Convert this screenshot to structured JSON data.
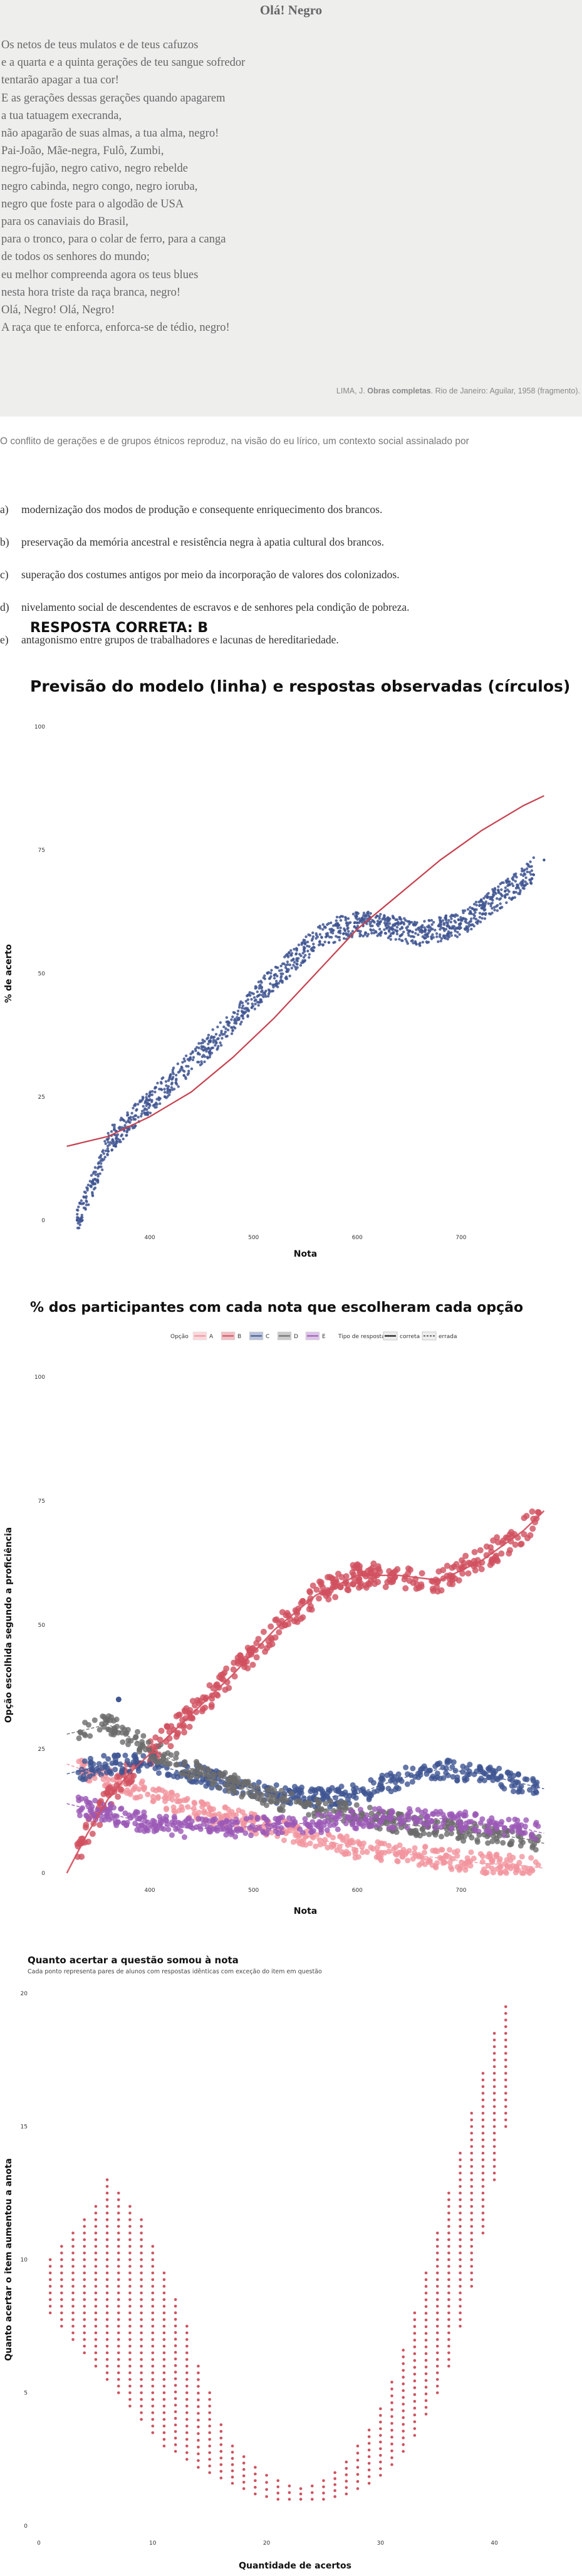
{
  "poem": {
    "title": "Olá! Negro",
    "lines": [
      "Os netos de teus mulatos e de teus cafuzos",
      "e a quarta e a quinta gerações de teu sangue sofredor",
      "tentarão apagar a tua cor!",
      "E as gerações dessas gerações quando apagarem",
      "a tua tatuagem execranda,",
      "não apagarão de suas almas, a tua alma, negro!",
      "Pai-João, Mãe-negra, Fulô, Zumbi,",
      "negro-fujão, negro cativo, negro rebelde",
      "negro cabinda, negro congo, negro ioruba,",
      "negro que foste para o algodão de USA",
      "para os canaviais do Brasil,",
      "para o tronco, para o colar de ferro, para a canga",
      "de todos os senhores do mundo;",
      "eu melhor compreenda agora os teus blues",
      "nesta hora triste da raça branca, negro!",
      "Olá, Negro! Olá, Negro!",
      "A raça que te enforca, enforca-se de tédio, negro!"
    ],
    "source_prefix": "LIMA, J. ",
    "source_bold": "Obras completas",
    "source_suffix": ". Rio de Janeiro: Aguilar, 1958 (fragmento)."
  },
  "question": {
    "text": "O conflito de gerações e de grupos étnicos reproduz, na visão do eu lírico, um contexto social assinalado por",
    "alternatives": [
      {
        "letter": "a)",
        "text": "modernização dos modos de produção e consequente enriquecimento dos brancos."
      },
      {
        "letter": "b)",
        "text": "preservação da memória ancestral e resistência negra à apatia cultural dos brancos."
      },
      {
        "letter": "c)",
        "text": "superação dos costumes antigos por meio da incorporação de valores dos colonizados."
      },
      {
        "letter": "d)",
        "text": "nivelamento social de descendentes de escravos e de senhores pela condição de pobreza."
      },
      {
        "letter": "e)",
        "text": "antagonismo entre grupos de trabalhadores e lacunas de hereditariedade."
      }
    ],
    "answer": "RESPOSTA CORRETA: B"
  },
  "chart_data": [
    {
      "type": "scatter",
      "title": "Previsão do modelo (linha) e respostas observadas (círculos)",
      "xlabel": "Nota",
      "ylabel": "% de acerto",
      "xlim": [
        310,
        790
      ],
      "ylim": [
        0,
        100
      ],
      "xticks": [
        {
          "v": 400,
          "label": "400"
        },
        {
          "v": 500,
          "label": "500"
        },
        {
          "v": 600,
          "label": "600"
        },
        {
          "v": 700,
          "label": "700"
        }
      ],
      "yticks": [
        {
          "v": 0,
          "label": "0"
        },
        {
          "v": 25,
          "label": "25"
        },
        {
          "v": 50,
          "label": "50"
        },
        {
          "v": 75,
          "label": "75"
        },
        {
          "v": 100,
          "label": "100"
        }
      ],
      "model_line": {
        "color": "#c8404f",
        "x": [
          320,
          360,
          400,
          440,
          480,
          520,
          560,
          600,
          640,
          680,
          720,
          760,
          780
        ],
        "y": [
          15,
          17,
          21,
          26,
          33,
          41,
          50,
          59,
          66,
          73,
          79,
          84,
          86
        ]
      },
      "observed": {
        "color": "#3f5592",
        "x": [
          320,
          330,
          340,
          350,
          360,
          380,
          400,
          420,
          440,
          460,
          480,
          500,
          520,
          540,
          560,
          580,
          600,
          620,
          640,
          660,
          680,
          700,
          720,
          740,
          760,
          780
        ],
        "y": [
          0,
          0,
          5,
          10,
          16,
          20,
          24,
          28,
          32,
          36,
          40,
          45,
          49,
          53,
          57,
          59,
          60,
          60,
          59,
          58,
          59,
          60,
          63,
          66,
          69,
          73
        ]
      }
    },
    {
      "type": "scatter",
      "title": "% dos participantes com cada nota que escolheram cada opção",
      "xlabel": "Nota",
      "ylabel": "Opção escolhida segundo a proficiência",
      "xlim": [
        310,
        790
      ],
      "ylim": [
        0,
        100
      ],
      "xticks": [
        {
          "v": 400,
          "label": "400"
        },
        {
          "v": 500,
          "label": "500"
        },
        {
          "v": 600,
          "label": "600"
        },
        {
          "v": 700,
          "label": "700"
        }
      ],
      "yticks": [
        {
          "v": 0,
          "label": "0"
        },
        {
          "v": 25,
          "label": "25"
        },
        {
          "v": 50,
          "label": "50"
        },
        {
          "v": 75,
          "label": "75"
        },
        {
          "v": 100,
          "label": "100"
        }
      ],
      "legend": {
        "option_title": "Opção",
        "type_title": "Tipo de resposta",
        "type_correct": "correta",
        "type_wrong": "errada",
        "items": [
          {
            "name": "A",
            "color": "#f2949e"
          },
          {
            "name": "B",
            "color": "#d1505f"
          },
          {
            "name": "C",
            "color": "#3f5592"
          },
          {
            "name": "D",
            "color": "#6b6b6b"
          },
          {
            "name": "E",
            "color": "#9b59b6"
          }
        ]
      },
      "series": [
        {
          "name": "A",
          "color": "#f2949e",
          "x": [
            320,
            360,
            400,
            440,
            480,
            520,
            560,
            600,
            640,
            680,
            720,
            760,
            780
          ],
          "y": [
            22,
            19,
            16,
            13,
            11,
            9,
            7,
            5,
            4,
            3,
            2,
            1.5,
            1
          ]
        },
        {
          "name": "B",
          "color": "#d1505f",
          "x": [
            320,
            340,
            360,
            380,
            400,
            440,
            480,
            520,
            560,
            600,
            640,
            680,
            720,
            760,
            780
          ],
          "y": [
            0,
            8,
            15,
            20,
            24,
            32,
            40,
            49,
            56,
            60,
            60,
            59,
            63,
            69,
            73
          ]
        },
        {
          "name": "C",
          "color": "#3f5592",
          "x": [
            320,
            360,
            400,
            440,
            480,
            520,
            560,
            600,
            640,
            680,
            720,
            760,
            780
          ],
          "y": [
            20,
            22,
            22,
            20,
            18,
            16,
            15,
            16,
            19,
            21,
            20,
            18,
            17
          ]
        },
        {
          "name": "D",
          "color": "#6b6b6b",
          "x": [
            320,
            360,
            400,
            440,
            480,
            520,
            560,
            600,
            640,
            680,
            720,
            760,
            780
          ],
          "y": [
            28,
            30,
            25,
            21,
            18,
            15,
            13,
            12,
            10,
            9,
            8,
            7,
            6
          ]
        },
        {
          "name": "E",
          "color": "#9b59b6",
          "x": [
            320,
            360,
            400,
            440,
            480,
            520,
            560,
            600,
            640,
            680,
            720,
            760,
            780
          ],
          "y": [
            14,
            12,
            10,
            9,
            9,
            10,
            10,
            11,
            11,
            11,
            10,
            9,
            8
          ]
        }
      ]
    },
    {
      "type": "scatter",
      "title": "Quanto acertar a questão somou à nota",
      "subtitle": "Cada ponto representa pares de alunos com respostas idênticas com exceção do item em questão",
      "xlabel": "Quantidade de acertos",
      "ylabel": "Quanto acertar o item aumentou a anota",
      "xlim": [
        0,
        45
      ],
      "ylim": [
        0,
        20
      ],
      "xticks": [
        {
          "v": 0,
          "label": "0"
        },
        {
          "v": 10,
          "label": "10"
        },
        {
          "v": 20,
          "label": "20"
        },
        {
          "v": 30,
          "label": "30"
        },
        {
          "v": 40,
          "label": "40"
        }
      ],
      "yticks": [
        {
          "v": 0,
          "label": "0"
        },
        {
          "v": 5,
          "label": "5"
        },
        {
          "v": 10,
          "label": "10"
        },
        {
          "v": 15,
          "label": "15"
        },
        {
          "v": 20,
          "label": "20"
        }
      ],
      "color": "#c8404f",
      "columns": [
        {
          "x": 1,
          "min": 8,
          "max": 10
        },
        {
          "x": 2,
          "min": 7.5,
          "max": 10.5
        },
        {
          "x": 3,
          "min": 7,
          "max": 11
        },
        {
          "x": 4,
          "min": 6.5,
          "max": 11.5
        },
        {
          "x": 5,
          "min": 6,
          "max": 12
        },
        {
          "x": 6,
          "min": 5.5,
          "max": 13
        },
        {
          "x": 7,
          "min": 5,
          "max": 12.5
        },
        {
          "x": 8,
          "min": 4.5,
          "max": 12
        },
        {
          "x": 9,
          "min": 4,
          "max": 11.5
        },
        {
          "x": 10,
          "min": 3.5,
          "max": 10.5
        },
        {
          "x": 11,
          "min": 3,
          "max": 9.5
        },
        {
          "x": 12,
          "min": 2.8,
          "max": 8.5
        },
        {
          "x": 13,
          "min": 2.5,
          "max": 7.5
        },
        {
          "x": 14,
          "min": 2.2,
          "max": 6
        },
        {
          "x": 15,
          "min": 2,
          "max": 5
        },
        {
          "x": 16,
          "min": 1.8,
          "max": 3.8
        },
        {
          "x": 17,
          "min": 1.6,
          "max": 3
        },
        {
          "x": 18,
          "min": 1.4,
          "max": 2.6
        },
        {
          "x": 19,
          "min": 1.2,
          "max": 2.2
        },
        {
          "x": 20,
          "min": 1.1,
          "max": 1.9
        },
        {
          "x": 21,
          "min": 1,
          "max": 1.7
        },
        {
          "x": 22,
          "min": 1,
          "max": 1.5
        },
        {
          "x": 23,
          "min": 1,
          "max": 1.4
        },
        {
          "x": 24,
          "min": 1,
          "max": 1.5
        },
        {
          "x": 25,
          "min": 1,
          "max": 1.7
        },
        {
          "x": 26,
          "min": 1.1,
          "max": 2
        },
        {
          "x": 27,
          "min": 1.2,
          "max": 2.4
        },
        {
          "x": 28,
          "min": 1.4,
          "max": 3
        },
        {
          "x": 29,
          "min": 1.6,
          "max": 3.6
        },
        {
          "x": 30,
          "min": 1.9,
          "max": 4.4
        },
        {
          "x": 31,
          "min": 2.3,
          "max": 5.4
        },
        {
          "x": 32,
          "min": 2.8,
          "max": 6.6
        },
        {
          "x": 33,
          "min": 3.4,
          "max": 8
        },
        {
          "x": 34,
          "min": 4.2,
          "max": 9.5
        },
        {
          "x": 35,
          "min": 5,
          "max": 11
        },
        {
          "x": 36,
          "min": 6,
          "max": 12.5
        },
        {
          "x": 37,
          "min": 7.5,
          "max": 14
        },
        {
          "x": 38,
          "min": 9,
          "max": 15.5
        },
        {
          "x": 39,
          "min": 11,
          "max": 17
        },
        {
          "x": 40,
          "min": 13,
          "max": 18.5
        },
        {
          "x": 41,
          "min": 15,
          "max": 19.5
        }
      ]
    }
  ]
}
